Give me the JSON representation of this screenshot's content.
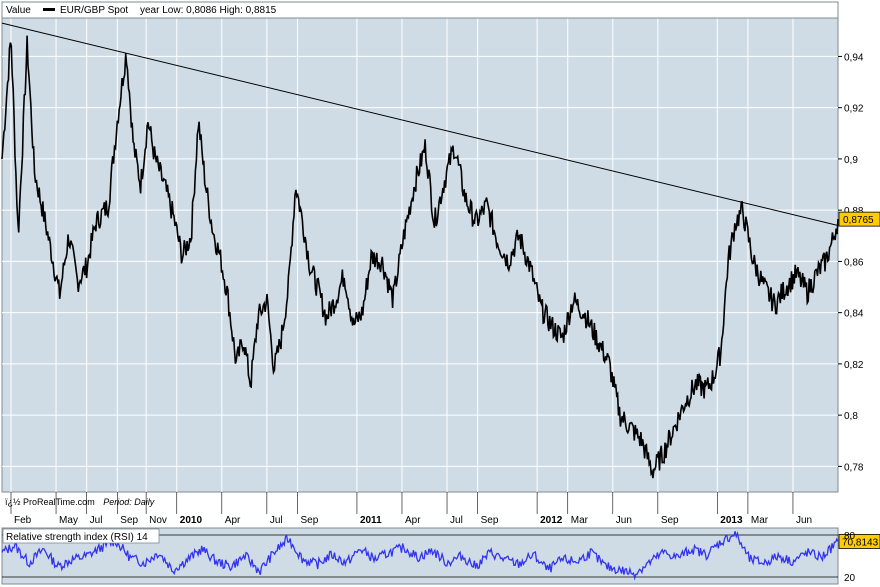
{
  "header": {
    "value_label": "Value",
    "instrument": "EUR/GBP Spot",
    "range_text": "year Low: 0,8086  High: 0,8815"
  },
  "footer": {
    "source": "ï¿½ ProRealTime.com",
    "period": "Period: Daily"
  },
  "rsi_panel": {
    "title": "Relative strength index (RSI) 14",
    "last_value": "70,8143",
    "axis_ticks": [
      "80",
      "20"
    ]
  },
  "price_panel": {
    "last_value": "0,8765"
  },
  "colors": {
    "plot_bg": "#cfdce6",
    "grid": "#ffffff",
    "price_line": "#000000",
    "trend_line": "#000000",
    "rsi_line": "#3333ee",
    "last_value_bg": "#ffcc00"
  },
  "x_labels": [
    {
      "label": "Feb",
      "bold": false
    },
    {
      "label": "May",
      "bold": false
    },
    {
      "label": "Jul",
      "bold": false
    },
    {
      "label": "Sep",
      "bold": false
    },
    {
      "label": "Nov",
      "bold": false
    },
    {
      "label": "2010",
      "bold": true
    },
    {
      "label": "Apr",
      "bold": false
    },
    {
      "label": "Jul",
      "bold": false
    },
    {
      "label": "Sep",
      "bold": false
    },
    {
      "label": "2011",
      "bold": true
    },
    {
      "label": "Apr",
      "bold": false
    },
    {
      "label": "Jul",
      "bold": false
    },
    {
      "label": "Sep",
      "bold": false
    },
    {
      "label": "2012",
      "bold": true
    },
    {
      "label": "Mar",
      "bold": false
    },
    {
      "label": "Jun",
      "bold": false
    },
    {
      "label": "Sep",
      "bold": false
    },
    {
      "label": "2013",
      "bold": true
    },
    {
      "label": "Mar",
      "bold": false
    },
    {
      "label": "Jun",
      "bold": false
    }
  ],
  "chart_data": {
    "type": "line",
    "title": "EUR/GBP Spot",
    "ylim": [
      0.77,
      0.955
    ],
    "y_ticks": [
      "0,78",
      "0,8",
      "0,82",
      "0,84",
      "0,86",
      "0,88",
      "0,9",
      "0,92",
      "0,94"
    ],
    "x_range": [
      2009.03,
      2013.67
    ],
    "x_label_positions": [
      2009.08,
      2009.33,
      2009.5,
      2009.67,
      2009.83,
      2010.0,
      2010.25,
      2010.5,
      2010.67,
      2011.0,
      2011.25,
      2011.5,
      2011.67,
      2012.0,
      2012.17,
      2012.42,
      2012.67,
      2013.0,
      2013.17,
      2013.42
    ],
    "series": [
      {
        "name": "EUR/GBP Spot",
        "x": [
          2009.03,
          2009.08,
          2009.12,
          2009.17,
          2009.21,
          2009.25,
          2009.3,
          2009.35,
          2009.4,
          2009.45,
          2009.5,
          2009.55,
          2009.62,
          2009.67,
          2009.72,
          2009.76,
          2009.8,
          2009.84,
          2009.88,
          2009.93,
          2009.98,
          2010.03,
          2010.08,
          2010.12,
          2010.16,
          2010.2,
          2010.24,
          2010.28,
          2010.33,
          2010.37,
          2010.41,
          2010.45,
          2010.5,
          2010.54,
          2010.58,
          2010.62,
          2010.66,
          2010.7,
          2010.74,
          2010.78,
          2010.83,
          2010.88,
          2010.93,
          2010.98,
          2011.03,
          2011.08,
          2011.14,
          2011.2,
          2011.26,
          2011.32,
          2011.38,
          2011.43,
          2011.48,
          2011.54,
          2011.6,
          2011.66,
          2011.72,
          2011.78,
          2011.84,
          2011.9,
          2011.96,
          2012.02,
          2012.08,
          2012.14,
          2012.2,
          2012.26,
          2012.33,
          2012.4,
          2012.46,
          2012.52,
          2012.58,
          2012.64,
          2012.7,
          2012.76,
          2012.82,
          2012.88,
          2012.94,
          2012.98,
          2013.02,
          2013.06,
          2013.1,
          2013.14,
          2013.2,
          2013.26,
          2013.32,
          2013.38,
          2013.44,
          2013.5,
          2013.55,
          2013.6,
          2013.64,
          2013.67
        ],
        "values": [
          0.9,
          0.948,
          0.87,
          0.945,
          0.895,
          0.882,
          0.865,
          0.847,
          0.87,
          0.852,
          0.858,
          0.875,
          0.882,
          0.915,
          0.942,
          0.905,
          0.89,
          0.915,
          0.9,
          0.89,
          0.878,
          0.862,
          0.87,
          0.915,
          0.89,
          0.872,
          0.862,
          0.848,
          0.82,
          0.83,
          0.812,
          0.838,
          0.845,
          0.818,
          0.83,
          0.85,
          0.89,
          0.875,
          0.858,
          0.85,
          0.838,
          0.845,
          0.855,
          0.835,
          0.84,
          0.862,
          0.86,
          0.845,
          0.87,
          0.89,
          0.905,
          0.875,
          0.89,
          0.905,
          0.885,
          0.875,
          0.882,
          0.868,
          0.86,
          0.87,
          0.858,
          0.842,
          0.835,
          0.83,
          0.845,
          0.84,
          0.83,
          0.82,
          0.8,
          0.795,
          0.79,
          0.778,
          0.785,
          0.795,
          0.805,
          0.812,
          0.81,
          0.815,
          0.825,
          0.86,
          0.875,
          0.88,
          0.86,
          0.85,
          0.843,
          0.85,
          0.855,
          0.848,
          0.855,
          0.86,
          0.868,
          0.8765
        ]
      }
    ],
    "trendline": {
      "x": [
        2009.03,
        2013.67
      ],
      "y": [
        0.953,
        0.874
      ]
    },
    "rsi": {
      "name": "Relative strength index (RSI) 14",
      "ylim": [
        10,
        90
      ],
      "levels": [
        80,
        20
      ],
      "x": [
        2009.03,
        2009.1,
        2009.18,
        2009.26,
        2009.34,
        2009.42,
        2009.5,
        2009.58,
        2009.66,
        2009.74,
        2009.82,
        2009.9,
        2009.98,
        2010.06,
        2010.14,
        2010.22,
        2010.3,
        2010.38,
        2010.46,
        2010.54,
        2010.62,
        2010.7,
        2010.78,
        2010.86,
        2010.94,
        2011.02,
        2011.1,
        2011.18,
        2011.26,
        2011.34,
        2011.42,
        2011.5,
        2011.58,
        2011.66,
        2011.74,
        2011.82,
        2011.9,
        2011.98,
        2012.06,
        2012.14,
        2012.22,
        2012.3,
        2012.38,
        2012.46,
        2012.54,
        2012.62,
        2012.7,
        2012.78,
        2012.86,
        2012.94,
        2013.02,
        2013.1,
        2013.18,
        2013.26,
        2013.34,
        2013.42,
        2013.5,
        2013.58,
        2013.67
      ],
      "values": [
        55,
        65,
        40,
        60,
        35,
        45,
        50,
        62,
        72,
        48,
        40,
        55,
        30,
        45,
        60,
        42,
        35,
        50,
        28,
        55,
        75,
        45,
        38,
        52,
        40,
        60,
        45,
        55,
        62,
        48,
        58,
        40,
        50,
        35,
        55,
        45,
        38,
        52,
        30,
        45,
        42,
        55,
        35,
        30,
        25,
        40,
        55,
        48,
        60,
        52,
        70,
        82,
        45,
        40,
        50,
        42,
        55,
        48,
        70.81
      ]
    }
  }
}
